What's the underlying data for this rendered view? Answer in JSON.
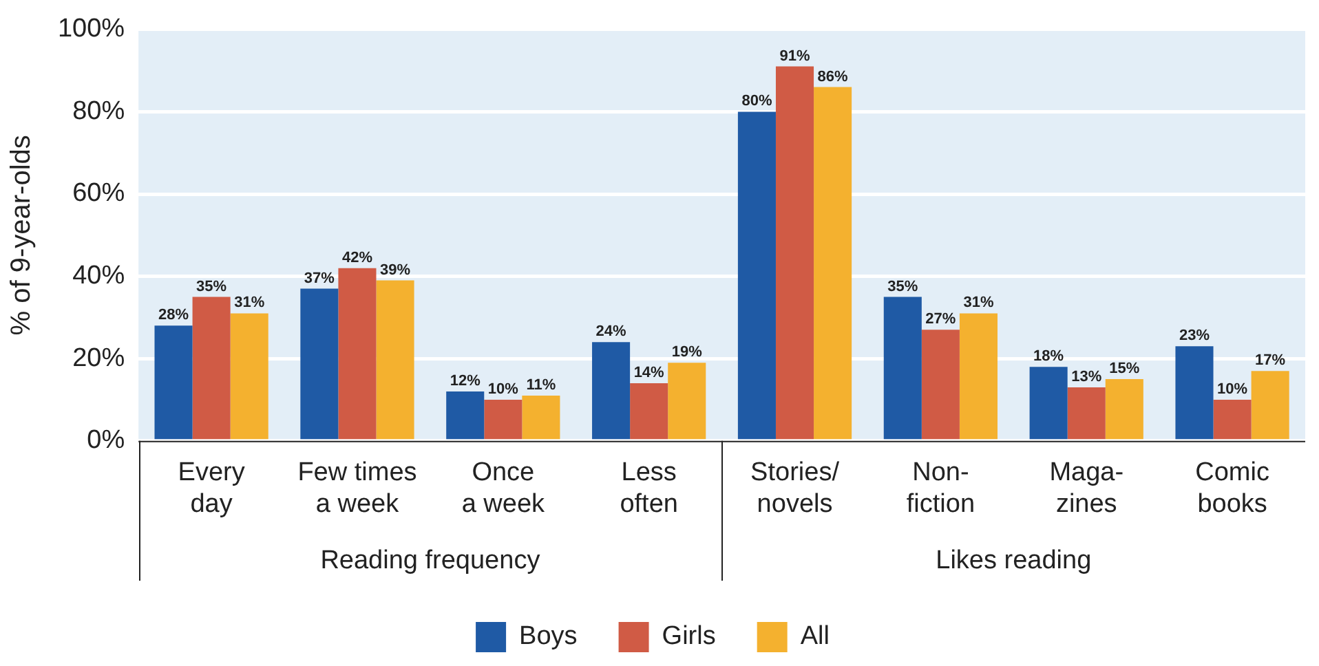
{
  "chart_data": {
    "type": "bar",
    "ylabel": "% of 9-year-olds",
    "categories": [
      "Every\nday",
      "Few times\na week",
      "Once\na week",
      "Less\noften",
      "Stories/\nnovels",
      "Non-\nfiction",
      "Maga-\nzines",
      "Comic\nbooks"
    ],
    "series": [
      {
        "name": "Boys",
        "color": "#1f5aa5",
        "values": [
          28,
          37,
          12,
          24,
          80,
          35,
          18,
          23
        ],
        "value_labels": [
          "28%",
          "37%",
          "12%",
          "24%",
          "80%",
          "35%",
          "18%",
          "23%"
        ]
      },
      {
        "name": "Girls",
        "color": "#d05b45",
        "values": [
          35,
          42,
          10,
          14,
          91,
          27,
          13,
          10
        ],
        "value_labels": [
          "35%",
          "42%",
          "10%",
          "14%",
          "91%",
          "27%",
          "13%",
          "10%"
        ]
      },
      {
        "name": "All",
        "color": "#f4b12f",
        "values": [
          31,
          39,
          11,
          19,
          86,
          31,
          15,
          17
        ],
        "value_labels": [
          "31%",
          "39%",
          "11%",
          "19%",
          "86%",
          "31%",
          "15%",
          "17%"
        ]
      }
    ],
    "ylim": [
      0,
      100
    ],
    "yticks": [
      {
        "value": 0,
        "label": "0%"
      },
      {
        "value": 20,
        "label": "20%"
      },
      {
        "value": 40,
        "label": "40%"
      },
      {
        "value": 60,
        "label": "60%"
      },
      {
        "value": 80,
        "label": "80%"
      },
      {
        "value": 100,
        "label": "100%"
      }
    ],
    "grid": "y",
    "legend": "bottom",
    "annotations": [
      "Reading frequency",
      "Likes reading"
    ]
  }
}
